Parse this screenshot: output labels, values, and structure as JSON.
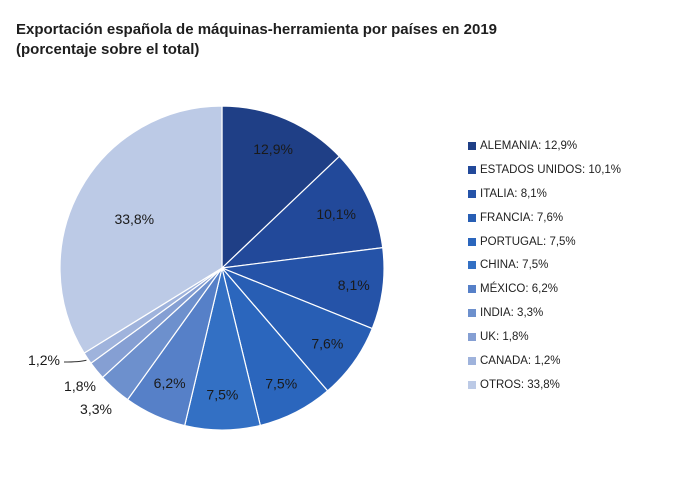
{
  "title": {
    "line1": "Exportación española de máquinas-herramienta por países en 2019",
    "line2": "(porcentaje sobre el total)"
  },
  "chart_data": {
    "type": "pie",
    "title": "Exportación española de máquinas-herramienta por países en 2019 (porcentaje sobre el total)",
    "slices": [
      {
        "category": "ALEMANIA",
        "value": 12.9,
        "label": "12,9%",
        "legend": "ALEMANIA: 12,9%",
        "color": "#1f3f86"
      },
      {
        "category": "ESTADOS UNIDOS",
        "value": 10.1,
        "label": "10,1%",
        "legend": "ESTADOS UNIDOS: 10,1%",
        "color": "#22499a"
      },
      {
        "category": "ITALIA",
        "value": 8.1,
        "label": "8,1%",
        "legend": "ITALIA: 8,1%",
        "color": "#2553a8"
      },
      {
        "category": "FRANCIA",
        "value": 7.6,
        "label": "7,6%",
        "legend": "FRANCIA: 7,6%",
        "color": "#285eb4"
      },
      {
        "category": "PORTUGAL",
        "value": 7.5,
        "label": "7,5%",
        "legend": "PORTUGAL: 7,5%",
        "color": "#2b66bd"
      },
      {
        "category": "CHINA",
        "value": 7.5,
        "label": "7,5%",
        "legend": "CHINA: 7,5%",
        "color": "#3370c4"
      },
      {
        "category": "MÉXICO",
        "value": 6.2,
        "label": "6,2%",
        "legend": "MÉXICO: 6,2%",
        "color": "#5680c8"
      },
      {
        "category": "INDIA",
        "value": 3.3,
        "label": "3,3%",
        "legend": "INDIA: 3,3%",
        "color": "#6d90cd"
      },
      {
        "category": "UK",
        "value": 1.8,
        "label": "1,8%",
        "legend": "UK: 1,8%",
        "color": "#859fd3"
      },
      {
        "category": "CANADA",
        "value": 1.2,
        "label": "1,2%",
        "legend": "CANADA: 1,2%",
        "color": "#9fb3dc"
      },
      {
        "category": "OTROS",
        "value": 33.8,
        "label": "33,8%",
        "legend": "OTROS: 33,8%",
        "color": "#bccae6"
      }
    ],
    "legend_position": "right"
  }
}
